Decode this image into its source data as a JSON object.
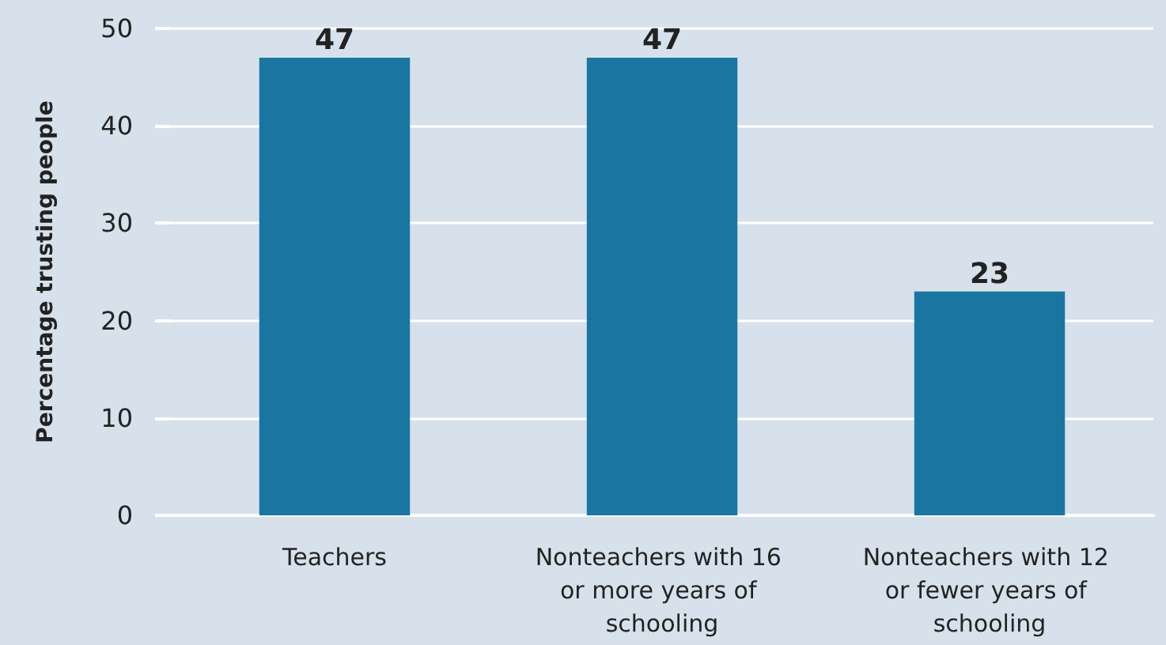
{
  "chart_data": {
    "type": "bar",
    "ylabel": "Percentage trusting people",
    "categories": [
      "Teachers",
      "Nonteachers with 16 or more years of schooling",
      "Nonteachers with 12 or fewer years of schooling"
    ],
    "values": [
      47,
      47,
      23
    ],
    "color": "#1a76a0",
    "ylim": [
      0,
      50
    ],
    "yticks": [
      0,
      10,
      20,
      30,
      40,
      50
    ],
    "grid": "y",
    "data_labels": true
  }
}
